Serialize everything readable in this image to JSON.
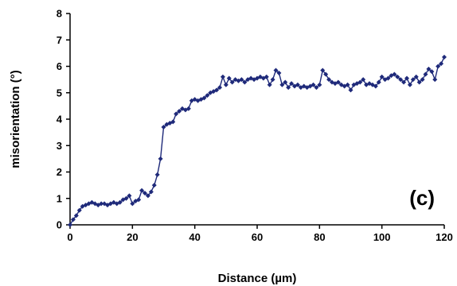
{
  "chart_data": {
    "type": "line",
    "title": "",
    "xlabel": "Distance (µm)",
    "ylabel": "misorientation (°)",
    "xlim": [
      0,
      120
    ],
    "ylim": [
      0,
      8
    ],
    "xticks": [
      0,
      20,
      40,
      60,
      80,
      100,
      120
    ],
    "yticks": [
      0,
      1,
      2,
      3,
      4,
      5,
      6,
      7,
      8
    ],
    "xtick_labels": [
      "0",
      "20",
      "40",
      "60",
      "80",
      "100",
      "120"
    ],
    "ytick_labels": [
      "0",
      "1",
      "2",
      "3",
      "4",
      "5",
      "6",
      "7",
      "8"
    ],
    "grid": false,
    "legend": "none",
    "annotation": "(c)",
    "series_color": "#1f2a7a",
    "series": [
      {
        "x": [
          0,
          1,
          2,
          3,
          4,
          5,
          6,
          7,
          8,
          9,
          10,
          11,
          12,
          13,
          14,
          15,
          16,
          17,
          18,
          19,
          20,
          21,
          22,
          23,
          24,
          25,
          26,
          27,
          28,
          29,
          30,
          31,
          32,
          33,
          34,
          35,
          36,
          37,
          38,
          39,
          40,
          41,
          42,
          43,
          44,
          45,
          46,
          47,
          48,
          49,
          50,
          51,
          52,
          53,
          54,
          55,
          56,
          57,
          58,
          59,
          60,
          61,
          62,
          63,
          64,
          65,
          66,
          67,
          68,
          69,
          70,
          71,
          72,
          73,
          74,
          75,
          76,
          77,
          78,
          79,
          80,
          81,
          82,
          83,
          84,
          85,
          86,
          87,
          88,
          89,
          90,
          91,
          92,
          93,
          94,
          95,
          96,
          97,
          98,
          99,
          100,
          101,
          102,
          103,
          104,
          105,
          106,
          107,
          108,
          109,
          110,
          111,
          112,
          113,
          114,
          115,
          116,
          117,
          118,
          119,
          120
        ],
        "y": [
          0.0,
          0.2,
          0.35,
          0.55,
          0.7,
          0.75,
          0.8,
          0.85,
          0.8,
          0.75,
          0.8,
          0.8,
          0.75,
          0.8,
          0.85,
          0.8,
          0.85,
          0.95,
          1.0,
          1.1,
          0.8,
          0.9,
          0.95,
          1.3,
          1.2,
          1.1,
          1.25,
          1.5,
          1.9,
          2.5,
          3.7,
          3.8,
          3.85,
          3.9,
          4.2,
          4.3,
          4.4,
          4.35,
          4.4,
          4.7,
          4.75,
          4.7,
          4.75,
          4.8,
          4.9,
          5.0,
          5.05,
          5.1,
          5.2,
          5.6,
          5.3,
          5.55,
          5.4,
          5.5,
          5.45,
          5.5,
          5.4,
          5.5,
          5.55,
          5.5,
          5.55,
          5.6,
          5.55,
          5.6,
          5.3,
          5.5,
          5.85,
          5.75,
          5.3,
          5.4,
          5.2,
          5.35,
          5.25,
          5.3,
          5.2,
          5.25,
          5.2,
          5.25,
          5.3,
          5.2,
          5.3,
          5.85,
          5.7,
          5.5,
          5.4,
          5.35,
          5.4,
          5.3,
          5.25,
          5.3,
          5.1,
          5.3,
          5.35,
          5.4,
          5.5,
          5.3,
          5.35,
          5.3,
          5.25,
          5.4,
          5.6,
          5.5,
          5.55,
          5.65,
          5.7,
          5.6,
          5.5,
          5.4,
          5.55,
          5.3,
          5.5,
          5.6,
          5.4,
          5.5,
          5.7,
          5.9,
          5.8,
          5.5,
          6.0,
          6.1,
          6.35
        ]
      }
    ]
  }
}
